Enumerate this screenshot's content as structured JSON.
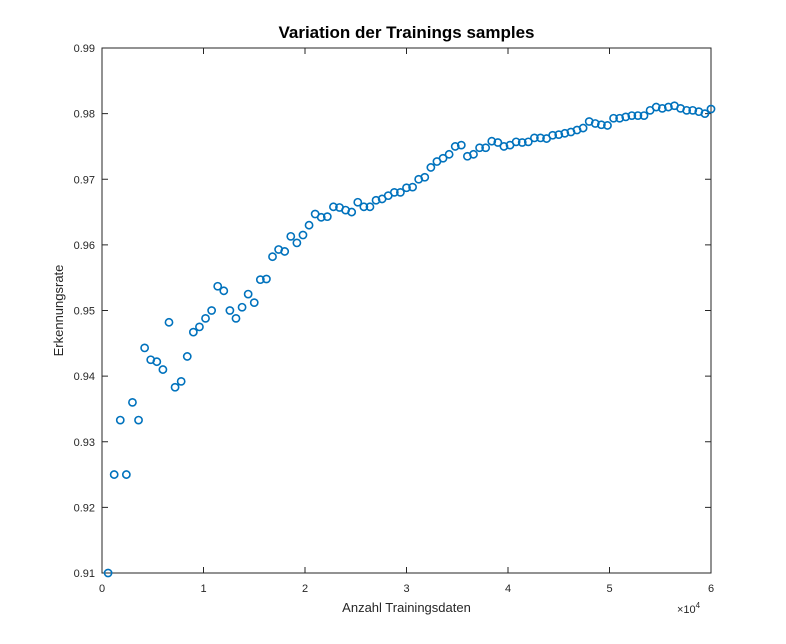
{
  "chart_data": {
    "type": "scatter",
    "title": "Variation der Trainings samples",
    "xlabel": "Anzahl Trainingsdaten",
    "ylabel": "Erkennungsrate",
    "x_exponent_label": "×10",
    "x_exponent_power": "4",
    "xlim": [
      0,
      60000
    ],
    "ylim": [
      0.91,
      0.99
    ],
    "x_ticks": [
      0,
      10000,
      20000,
      30000,
      40000,
      50000,
      60000
    ],
    "x_tick_labels": [
      "0",
      "1",
      "2",
      "3",
      "4",
      "5",
      "6"
    ],
    "y_ticks": [
      0.91,
      0.92,
      0.93,
      0.94,
      0.95,
      0.96,
      0.97,
      0.98,
      0.99
    ],
    "y_tick_labels": [
      "0.91",
      "0.92",
      "0.93",
      "0.94",
      "0.95",
      "0.96",
      "0.97",
      "0.98",
      "0.99"
    ],
    "grid": false,
    "marker": "circle",
    "marker_color": "#0072BD",
    "series": [
      {
        "x": [
          600,
          1200,
          1800,
          2400,
          3000,
          3600,
          4200,
          4800,
          5400,
          6000,
          6600,
          7200,
          7800,
          8400,
          9000,
          9600,
          10200,
          10800,
          11400,
          12000,
          12600,
          13200,
          13800,
          14400,
          15000,
          15600,
          16200,
          16800,
          17400,
          18000,
          18600,
          19200,
          19800,
          20400,
          21000,
          21600,
          22200,
          22800,
          23400,
          24000,
          24600,
          25200,
          25800,
          26400,
          27000,
          27600,
          28200,
          28800,
          29400,
          30000,
          30600,
          31200,
          31800,
          32400,
          33000,
          33600,
          34200,
          34800,
          35400,
          36000,
          36600,
          37200,
          37800,
          38400,
          39000,
          39600,
          40200,
          40800,
          41400,
          42000,
          42600,
          43200,
          43800,
          44400,
          45000,
          45600,
          46200,
          46800,
          47400,
          48000,
          48600,
          49200,
          49800,
          50400,
          51000,
          51600,
          52200,
          52800,
          53400,
          54000,
          54600,
          55200,
          55800,
          56400,
          57000,
          57600,
          58200,
          58800,
          59400,
          60000
        ],
        "y": [
          0.91,
          0.925,
          0.9333,
          0.925,
          0.936,
          0.9333,
          0.9443,
          0.9425,
          0.9422,
          0.941,
          0.9482,
          0.9383,
          0.9392,
          0.943,
          0.9467,
          0.9475,
          0.9488,
          0.95,
          0.9537,
          0.953,
          0.95,
          0.9488,
          0.9505,
          0.9525,
          0.9512,
          0.9547,
          0.9548,
          0.9582,
          0.9593,
          0.959,
          0.9613,
          0.9603,
          0.9615,
          0.963,
          0.9647,
          0.9642,
          0.9643,
          0.9658,
          0.9657,
          0.9653,
          0.965,
          0.9665,
          0.9658,
          0.9658,
          0.9668,
          0.967,
          0.9675,
          0.968,
          0.968,
          0.9687,
          0.9688,
          0.97,
          0.9703,
          0.9718,
          0.9727,
          0.9732,
          0.9738,
          0.975,
          0.9752,
          0.9735,
          0.9738,
          0.9748,
          0.9748,
          0.9758,
          0.9756,
          0.975,
          0.9752,
          0.9757,
          0.9756,
          0.9757,
          0.9763,
          0.9763,
          0.9762,
          0.9767,
          0.9768,
          0.977,
          0.9772,
          0.9775,
          0.9778,
          0.9788,
          0.9785,
          0.9783,
          0.9782,
          0.9793,
          0.9793,
          0.9795,
          0.9797,
          0.9797,
          0.9797,
          0.9805,
          0.981,
          0.9808,
          0.981,
          0.9812,
          0.9808,
          0.9805,
          0.9805,
          0.9803,
          0.98,
          0.9807
        ]
      }
    ]
  }
}
